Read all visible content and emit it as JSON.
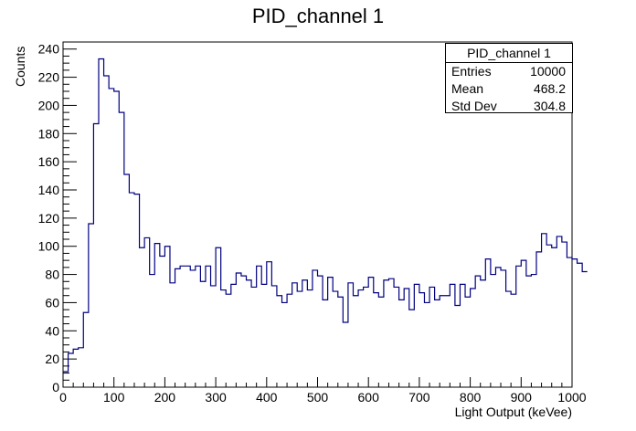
{
  "chart_data": {
    "type": "bar",
    "title": "PID_channel 1",
    "xlabel": "Light Output (keVee)",
    "ylabel": "Counts",
    "xlim": [
      0,
      1000
    ],
    "ylim": [
      0,
      245
    ],
    "bin_width": 10,
    "x_ticks": [
      0,
      100,
      200,
      300,
      400,
      500,
      600,
      700,
      800,
      900,
      1000
    ],
    "y_ticks": [
      0,
      20,
      40,
      60,
      80,
      100,
      120,
      140,
      160,
      180,
      200,
      220,
      240
    ],
    "line_color": "#000080",
    "values": [
      11,
      24,
      27,
      28,
      53,
      116,
      187,
      233,
      221,
      212,
      210,
      195,
      151,
      138,
      137,
      99,
      106,
      80,
      102,
      93,
      100,
      74,
      84,
      86,
      86,
      83,
      86,
      75,
      86,
      72,
      99,
      69,
      66,
      73,
      81,
      79,
      76,
      71,
      86,
      73,
      89,
      72,
      65,
      60,
      66,
      74,
      68,
      76,
      69,
      83,
      79,
      62,
      78,
      68,
      64,
      46,
      74,
      65,
      69,
      71,
      78,
      67,
      64,
      76,
      77,
      71,
      62,
      70,
      55,
      73,
      67,
      60,
      71,
      62,
      65,
      65,
      73,
      58,
      73,
      64,
      70,
      79,
      76,
      91,
      80,
      85,
      83,
      68,
      66,
      86,
      90,
      79,
      80,
      96,
      109,
      101,
      99,
      107,
      103,
      92,
      91,
      88,
      82
    ]
  },
  "stats_box": {
    "title": "PID_channel 1",
    "rows": [
      {
        "label": "Entries",
        "value": "10000"
      },
      {
        "label": "Mean",
        "value": "468.2"
      },
      {
        "label": "Std Dev",
        "value": "304.8"
      }
    ]
  }
}
